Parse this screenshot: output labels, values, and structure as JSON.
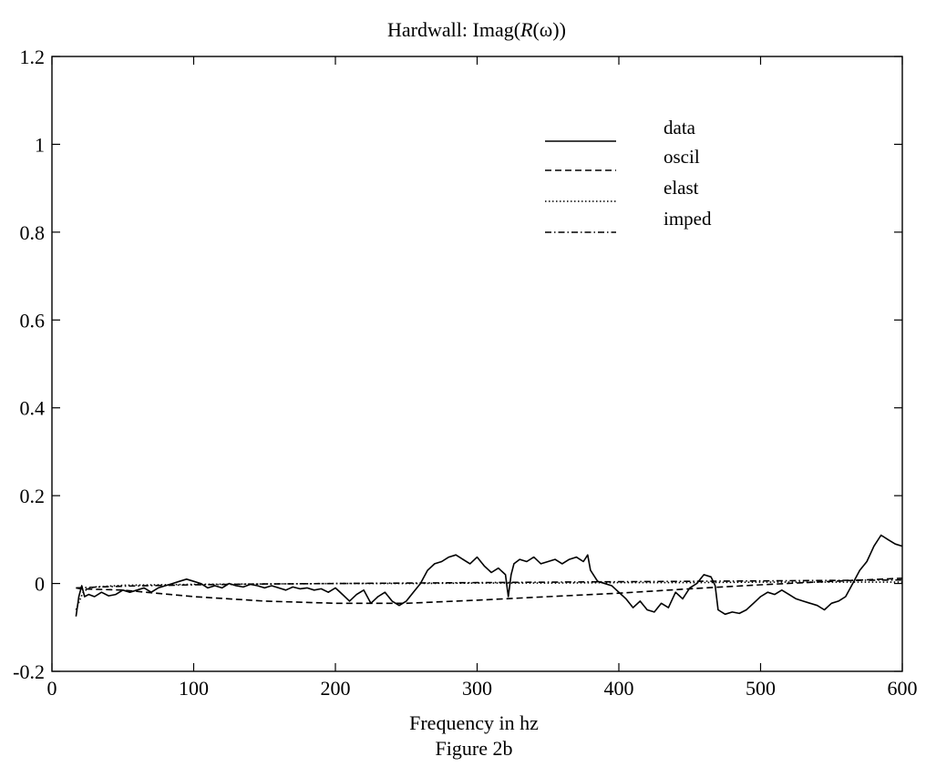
{
  "chart_data": {
    "type": "line",
    "title_prefix": "Hardwall: Imag(",
    "title_italic": "R",
    "title_omega": "(ω",
    "title_suffix": "))",
    "xlabel": "Frequency in hz",
    "caption": "Figure 2b",
    "ylabel": "",
    "xlim": [
      0,
      600
    ],
    "ylim": [
      -0.2,
      1.2
    ],
    "xticks": [
      0,
      100,
      200,
      300,
      400,
      500,
      600
    ],
    "xtick_labels": [
      "0",
      "100",
      "200",
      "300",
      "400",
      "500",
      "600"
    ],
    "yticks": [
      -0.2,
      0,
      0.2,
      0.4,
      0.6,
      0.8,
      1,
      1.2
    ],
    "ytick_labels": [
      "-0.2",
      "0",
      "0.2",
      "0.4",
      "0.6",
      "0.8",
      "1",
      "1.2"
    ],
    "grid": false,
    "legend_position": "top-right",
    "series": [
      {
        "name": "data",
        "style": "solid",
        "color": "#000000",
        "x": [
          17,
          19,
          21,
          23,
          26,
          30,
          35,
          40,
          45,
          50,
          55,
          60,
          65,
          70,
          75,
          80,
          85,
          90,
          95,
          100,
          105,
          110,
          115,
          120,
          125,
          130,
          135,
          140,
          145,
          150,
          155,
          160,
          165,
          170,
          175,
          180,
          185,
          190,
          195,
          200,
          205,
          210,
          215,
          220,
          225,
          230,
          235,
          240,
          245,
          250,
          255,
          260,
          265,
          270,
          275,
          280,
          285,
          290,
          295,
          300,
          305,
          310,
          315,
          320,
          322,
          324,
          326,
          330,
          335,
          340,
          345,
          350,
          355,
          360,
          365,
          370,
          375,
          378,
          380,
          385,
          390,
          395,
          400,
          405,
          410,
          415,
          420,
          425,
          430,
          435,
          440,
          445,
          450,
          455,
          460,
          465,
          468,
          470,
          475,
          480,
          485,
          490,
          495,
          500,
          505,
          510,
          515,
          520,
          525,
          530,
          535,
          540,
          545,
          550,
          555,
          560,
          565,
          570,
          575,
          580,
          585,
          590,
          595,
          600
        ],
        "y": [
          -0.075,
          -0.03,
          -0.005,
          -0.03,
          -0.025,
          -0.03,
          -0.02,
          -0.028,
          -0.025,
          -0.015,
          -0.02,
          -0.015,
          -0.01,
          -0.02,
          -0.01,
          -0.005,
          0.0,
          0.005,
          0.01,
          0.005,
          0.0,
          -0.01,
          -0.005,
          -0.01,
          0.0,
          -0.005,
          -0.008,
          -0.002,
          -0.005,
          -0.01,
          -0.005,
          -0.01,
          -0.015,
          -0.008,
          -0.012,
          -0.01,
          -0.015,
          -0.012,
          -0.02,
          -0.01,
          -0.025,
          -0.04,
          -0.025,
          -0.015,
          -0.045,
          -0.03,
          -0.02,
          -0.04,
          -0.05,
          -0.04,
          -0.02,
          0.0,
          0.03,
          0.045,
          0.05,
          0.06,
          0.065,
          0.055,
          0.045,
          0.06,
          0.04,
          0.025,
          0.035,
          0.02,
          -0.03,
          0.02,
          0.045,
          0.055,
          0.05,
          0.06,
          0.045,
          0.05,
          0.055,
          0.045,
          0.055,
          0.06,
          0.05,
          0.065,
          0.03,
          0.005,
          0.0,
          -0.005,
          -0.02,
          -0.035,
          -0.055,
          -0.04,
          -0.06,
          -0.065,
          -0.045,
          -0.055,
          -0.02,
          -0.035,
          -0.01,
          0.0,
          0.02,
          0.015,
          -0.005,
          -0.06,
          -0.07,
          -0.065,
          -0.068,
          -0.06,
          -0.045,
          -0.03,
          -0.02,
          -0.025,
          -0.015,
          -0.025,
          -0.035,
          -0.04,
          -0.045,
          -0.05,
          -0.06,
          -0.045,
          -0.04,
          -0.03,
          0.0,
          0.03,
          0.05,
          0.085,
          0.11,
          0.1,
          0.09,
          0.085
        ]
      },
      {
        "name": "oscil",
        "style": "dashed",
        "color": "#000000",
        "x": [
          17,
          20,
          50,
          100,
          150,
          200,
          250,
          300,
          350,
          400,
          450,
          500,
          550,
          600
        ],
        "y": [
          -0.01,
          -0.012,
          -0.015,
          -0.03,
          -0.04,
          -0.045,
          -0.045,
          -0.038,
          -0.03,
          -0.022,
          -0.012,
          -0.003,
          0.005,
          0.012
        ]
      },
      {
        "name": "elast",
        "style": "dotted",
        "color": "#000000",
        "x": [
          17,
          20,
          22,
          25,
          30,
          50,
          100,
          150,
          200,
          250,
          300,
          350,
          400,
          450,
          500,
          550,
          600
        ],
        "y": [
          -0.06,
          -0.035,
          -0.02,
          -0.012,
          -0.008,
          -0.004,
          -0.002,
          -0.001,
          0.0,
          0.0,
          0.001,
          0.001,
          0.002,
          0.002,
          0.003,
          0.003,
          0.003
        ]
      },
      {
        "name": "imped",
        "style": "dashdot",
        "color": "#000000",
        "x": [
          17,
          50,
          100,
          150,
          200,
          250,
          300,
          350,
          400,
          450,
          500,
          550,
          600
        ],
        "y": [
          -0.01,
          -0.006,
          -0.003,
          -0.001,
          0.0,
          0.001,
          0.002,
          0.003,
          0.004,
          0.005,
          0.006,
          0.007,
          0.008
        ]
      }
    ]
  }
}
